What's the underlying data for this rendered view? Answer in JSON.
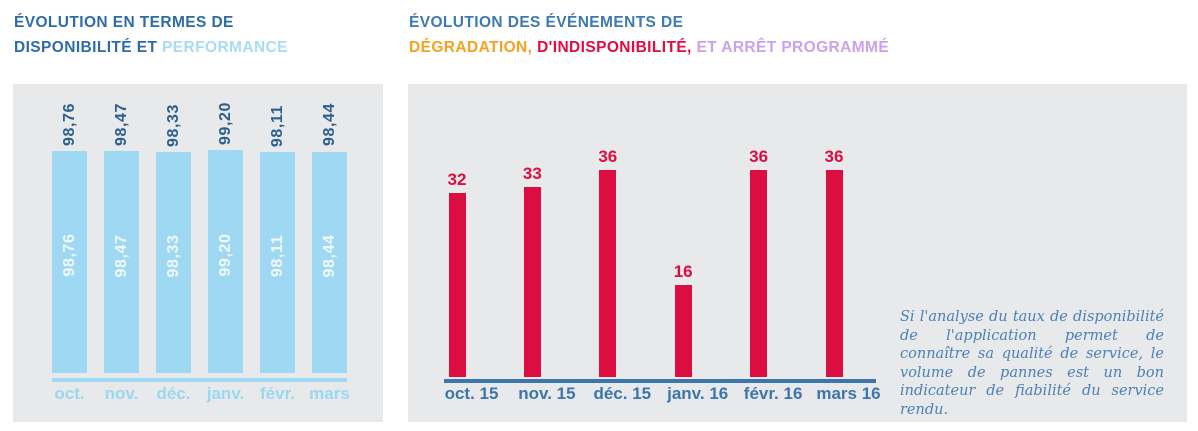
{
  "titles": {
    "left": {
      "line1": "ÉVOLUTION EN TERMES DE",
      "line2_dark": "DISPONIBILITÉ ET",
      "line2_accent": "PERFORMANCE"
    },
    "right": {
      "line1": "ÉVOLUTION DES ÉVÉNEMENTS DE",
      "seg_degradation": "DÉGRADATION,",
      "seg_indisponibilite": "D'INDISPONIBILITÉ,",
      "seg_arret": "ET ARRÊT PROGRAMMÉ"
    }
  },
  "note": {
    "text": "Si l'analyse du taux de disponibilité de l'application permet de connaître sa qualité de service, le volume de pannes est un bon indicateur de fiabilité du service rendu."
  },
  "colors": {
    "title_navy": "#2e6ca7",
    "title_blue": "#3d7ab3",
    "accent_light_blue": "#a6dcf5",
    "accent_orange": "#f8a120",
    "accent_red": "#e30b3e",
    "accent_lavender": "#c9a1ef",
    "bar_light_blue": "#9fd8f2",
    "bar_crimson": "#dc0d41",
    "axis_steel_blue": "#3d76ad",
    "value_label_navy": "#2c5f8e",
    "note_blue": "#4c80b8",
    "panel_gray": "#e8e9ea"
  },
  "chart_data": [
    {
      "type": "bar",
      "title": "ÉVOLUTION EN TERMES DE DISPONIBILITÉ ET PERFORMANCE",
      "categories": [
        "oct.",
        "nov.",
        "déc.",
        "janv.",
        "févr.",
        "mars"
      ],
      "values": [
        98.76,
        98.47,
        98.33,
        99.2,
        98.11,
        98.44
      ],
      "value_labels": [
        "98,76",
        "98,47",
        "98,33",
        "99,20",
        "98,11",
        "98,44"
      ],
      "value_label_positions": "rotated above bar and rotated inside bar",
      "xlabel": "",
      "ylabel": "",
      "ylim": [
        0,
        100
      ],
      "grid": false,
      "legend": false,
      "bar_color": "#9fd8f2"
    },
    {
      "type": "bar",
      "title": "ÉVOLUTION DES ÉVÉNEMENTS DE DÉGRADATION, D'INDISPONIBILITÉ, ET ARRÊT PROGRAMMÉ",
      "categories": [
        "oct. 15",
        "nov. 15",
        "déc. 15",
        "janv. 16",
        "févr. 16",
        "mars 16"
      ],
      "values": [
        32,
        33,
        36,
        16,
        36,
        36
      ],
      "value_labels": [
        "32",
        "33",
        "36",
        "16",
        "36",
        "36"
      ],
      "value_label_positions": "above bar",
      "xlabel": "",
      "ylabel": "",
      "ylim": [
        0,
        40
      ],
      "grid": false,
      "legend": false,
      "bar_color": "#dc0d41"
    }
  ]
}
